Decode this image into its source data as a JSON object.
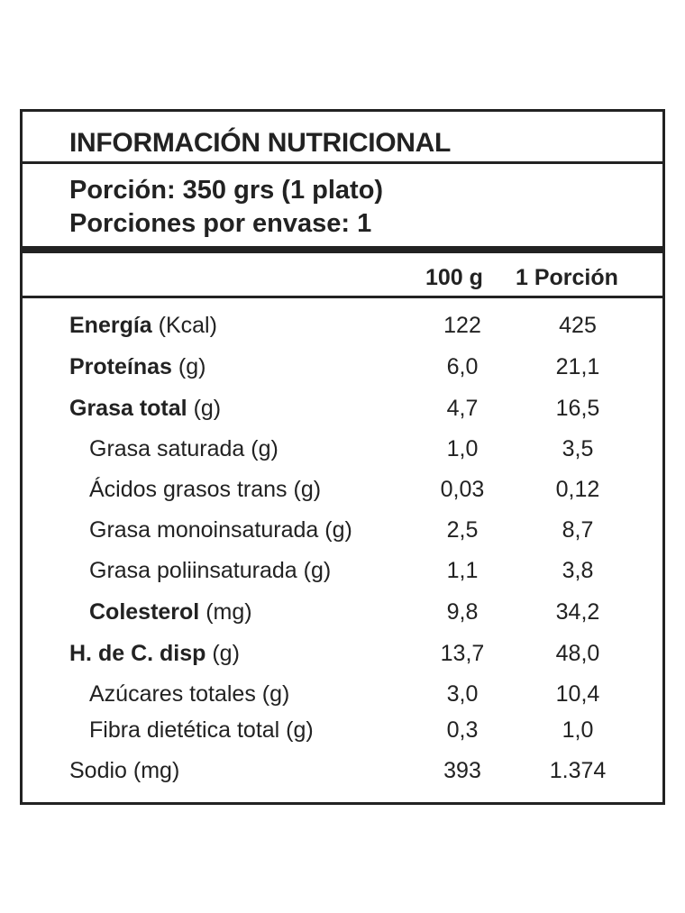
{
  "title": "INFORMACIÓN NUTRICIONAL",
  "portion": {
    "size": "Porción: 350 grs (1 plato)",
    "per_package": "Porciones por envase: 1"
  },
  "columns": {
    "per_100g": "100 g",
    "per_portion": "1 Porción"
  },
  "rows": [
    {
      "name": "Energía",
      "unit": "(Kcal)",
      "v100": "122",
      "vportion": "425"
    },
    {
      "name": "Proteínas",
      "unit": "(g)",
      "v100": "6,0",
      "vportion": "21,1"
    },
    {
      "name": "Grasa total",
      "unit": "(g)",
      "v100": "4,7",
      "vportion": "16,5"
    },
    {
      "name": "Grasa saturada (g)",
      "v100": "1,0",
      "vportion": "3,5"
    },
    {
      "name": "Ácidos grasos trans (g)",
      "v100": "0,03",
      "vportion": "0,12"
    },
    {
      "name": "Grasa monoinsaturada (g)",
      "v100": "2,5",
      "vportion": "8,7"
    },
    {
      "name": "Grasa poliinsaturada (g)",
      "v100": "1,1",
      "vportion": "3,8"
    },
    {
      "name": "Colesterol",
      "unit": "(mg)",
      "v100": "9,8",
      "vportion": "34,2"
    },
    {
      "name": "H. de C. disp",
      "unit": "(g)",
      "v100": "13,7",
      "vportion": "48,0"
    },
    {
      "name": "Azúcares totales (g)",
      "v100": "3,0",
      "vportion": "10,4"
    },
    {
      "name": "Fibra dietética total (g)",
      "v100": "0,3",
      "vportion": "1,0"
    },
    {
      "name": "Sodio (mg)",
      "v100": "393",
      "vportion": "1.374"
    }
  ]
}
